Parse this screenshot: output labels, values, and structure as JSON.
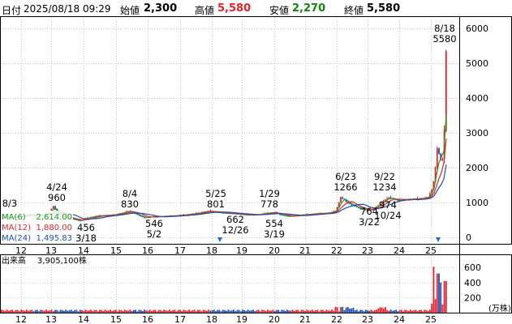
{
  "header": {
    "date_label": "日付",
    "date": "2025/08/18 09:29",
    "open_label": "始値",
    "open": "2,300",
    "high_label": "高値",
    "high": "5,580",
    "low_label": "安値",
    "low": "2,270",
    "close_label": "終値",
    "close": "5,580"
  },
  "legend": {
    "ma6": "MA(6)",
    "ma6_value": "2,614.00",
    "ma12": "MA(12)",
    "ma12_value": "1,880.00",
    "ma24": "MA(24)",
    "ma24_value": "1,495.83",
    "volume": "出来高",
    "volume_value": "3,905,100株",
    "volume_unit": "(万株)"
  },
  "colors": {
    "up": "#e8222a",
    "down": "#1b4fb4",
    "ma6": "#18a018",
    "ma12": "#e8222a",
    "ma24": "#1b4fb4",
    "high": "#e8222a",
    "low": "#118811"
  },
  "chart_data": [
    {
      "type": "candlestick",
      "ylim": [
        0,
        6000
      ],
      "y_ticks": [
        "6000",
        "5000",
        "4000",
        "3000",
        "2000",
        "1000",
        "0"
      ],
      "x_ticks": [
        "12",
        "13",
        "14",
        "15",
        "16",
        "17",
        "18",
        "19",
        "20",
        "21",
        "22",
        "23",
        "24",
        "25"
      ],
      "annotations": [
        {
          "date": "8/3",
          "value": "",
          "pos": "left"
        },
        {
          "date": "4/24",
          "value": "960",
          "pos": "above"
        },
        {
          "date": "3/18",
          "value": "456",
          "pos": "below"
        },
        {
          "date": "8/4",
          "value": "830",
          "pos": "above"
        },
        {
          "date": "5/2",
          "value": "546",
          "pos": "below"
        },
        {
          "date": "5/25",
          "value": "801",
          "pos": "above"
        },
        {
          "date": "12/26",
          "value": "662",
          "pos": "below"
        },
        {
          "date": "1/29",
          "value": "778",
          "pos": "above"
        },
        {
          "date": "3/19",
          "value": "554",
          "pos": "below"
        },
        {
          "date": "6/23",
          "value": "1266",
          "pos": "above"
        },
        {
          "date": "3/22",
          "value": "764",
          "pos": "below"
        },
        {
          "date": "9/22",
          "value": "1234",
          "pos": "above"
        },
        {
          "date": "10/24",
          "value": "974",
          "pos": "below"
        },
        {
          "date": "8/18",
          "value": "5580",
          "pos": "above"
        }
      ]
    },
    {
      "type": "bar",
      "title": "出来高",
      "ylim": [
        0,
        700
      ],
      "y_ticks": [
        "600",
        "400",
        "200"
      ],
      "x_ticks": [
        "12",
        "13",
        "14",
        "15",
        "16",
        "17",
        "18",
        "19",
        "20",
        "21",
        "22",
        "23",
        "24",
        "25"
      ]
    }
  ]
}
